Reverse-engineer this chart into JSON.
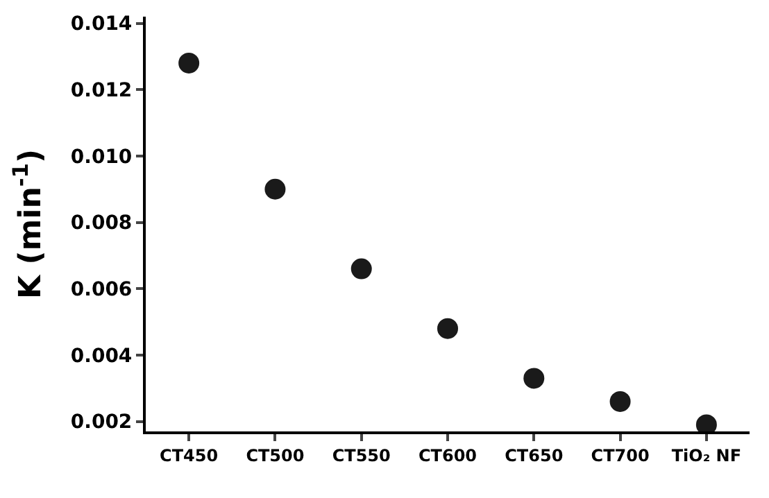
{
  "chart_data": {
    "type": "scatter",
    "ylabel": "K (min$^{-1}$)",
    "categories": [
      "CT450",
      "CT500",
      "CT550",
      "CT600",
      "CT650",
      "CT700",
      "TiO₂ NF"
    ],
    "series": [
      {
        "color": "#1a1a1a",
        "values": [
          0.0128,
          0.009,
          0.0066,
          0.0048,
          0.0033,
          0.0026,
          0.0019
        ]
      }
    ],
    "ylim": [
      0.0017,
      0.0142
    ],
    "yticks": [
      0.002,
      0.004,
      0.006,
      0.008,
      {
        "value": 0.01,
        "label": "0.010"
      },
      0.012,
      0.014
    ],
    "marker": "circle"
  }
}
